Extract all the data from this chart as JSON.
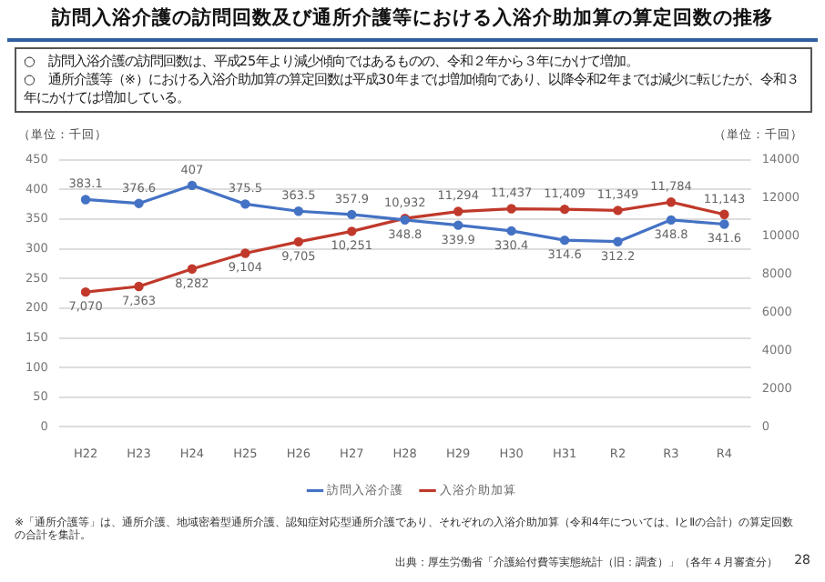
{
  "chart_data": {
    "type": "line",
    "title": "訪問入浴介護の訪問回数及び通所介護等における入浴介助加算の算定回数の推移",
    "subtitle": "○　訪問入浴介護の訪問回数は、平成25年より減少傾向ではあるものの、令和２年から３年にかけて増加。\n○　通所介護等（※）における入浴介助加算の算定回数は平成30年までは増加傾向であり、以降令和2年までは減少に転じたが、令和３年にかけては増加している。",
    "ylabel": "（単位：千回）",
    "y2label": "（単位：千回）",
    "categories": [
      "H22",
      "H23",
      "H24",
      "H25",
      "H26",
      "H27",
      "H28",
      "H29",
      "H30",
      "H31",
      "R2",
      "R3",
      "R4"
    ],
    "series": [
      {
        "name": "訪問入浴介護",
        "color": "#4472c4",
        "values": [
          383.1,
          376.6,
          407,
          375.5,
          363.5,
          357.9,
          348.8,
          339.9,
          330.4,
          314.6,
          312.2,
          348.8,
          341.6
        ],
        "value_labels": [
          "383.1",
          "376.6",
          "407",
          "375.5",
          "363.5",
          "357.9",
          "348.8",
          "339.9",
          "330.4",
          "314.6",
          "312.2",
          "348.8",
          "341.6"
        ]
      },
      {
        "name": "入浴介助加算",
        "color": "#c0392b",
        "axis": "y2",
        "values": [
          7070,
          7363,
          8282,
          9104,
          9705,
          10251,
          10932,
          11294,
          11437,
          11409,
          11349,
          11784,
          11143
        ],
        "value_labels": [
          "7,070",
          "7,363",
          "8,282",
          "9,104",
          "9,705",
          "10,251",
          "10,932",
          "11,294",
          "11,437",
          "11,409",
          "11,349",
          "11,784",
          "11,143"
        ]
      }
    ],
    "ylim": [
      0,
      450
    ],
    "yticks": [
      0,
      50,
      100,
      150,
      200,
      250,
      300,
      350,
      400,
      450
    ],
    "y2lim": [
      0,
      14000
    ],
    "y2ticks": [
      0,
      2000,
      4000,
      6000,
      8000,
      10000,
      12000,
      14000
    ],
    "grid": "y",
    "legend": "bottom",
    "marker": "circle",
    "line_style": "solid",
    "annotations": [
      "※「通所介護等」は、通所介護、地域密着型通所介護、認知症対応型通所介護であり、それぞれの入浴介助加算（令和4年については、ⅠとⅡの合計）の算定回数の合計を集計。",
      "出典：厚生労働省「介護給付費等実態統計（旧：調査）」（各年４月審査分）",
      "28"
    ]
  }
}
